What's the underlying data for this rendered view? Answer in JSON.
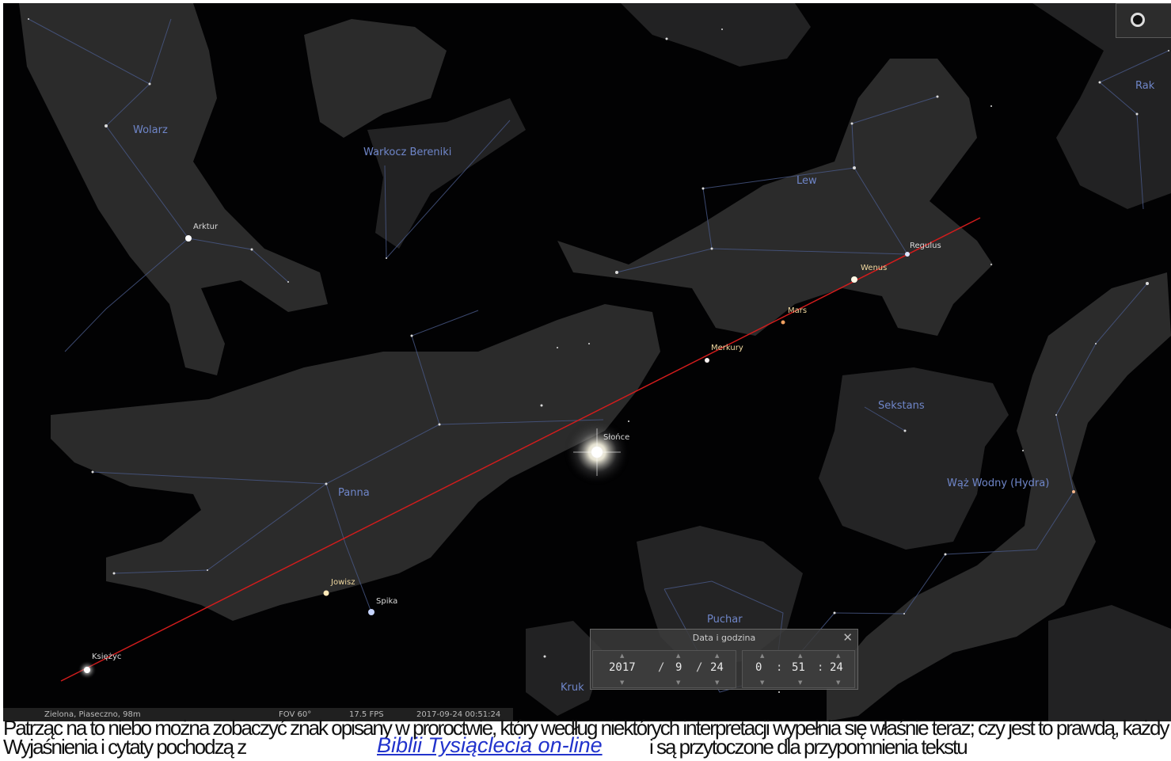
{
  "constellations": {
    "wolarz": "Wolarz",
    "warkocz": "Warkocz Bereniki",
    "lew": "Lew",
    "rak": "Rak",
    "panna": "Panna",
    "sekstans": "Sekstans",
    "waz_wodny": "Wąż Wodny (Hydra)",
    "puchar": "Puchar",
    "kruk": "Kruk"
  },
  "objects": {
    "arktur": "Arktur",
    "regulus": "Regulus",
    "wenus": "Wenus",
    "mars": "Mars",
    "merkury": "Merkury",
    "slonce": "Słońce",
    "jowisz": "Jowisz",
    "spika": "Spika",
    "ksiezyc": "Księżyc"
  },
  "datetime_panel": {
    "title": "Data i godzina",
    "close": "✕",
    "year": "2017",
    "month": "9",
    "day": "24",
    "hour": "0",
    "minute": "51",
    "second": "24",
    "date_sep": "/",
    "time_sep": ":"
  },
  "status_bar": {
    "location": "Zielona, Piaseczno, 98m",
    "fov": "FOV 60°",
    "fps": "17.5 FPS",
    "datetime": "2017-09-24 00:51:24"
  },
  "overlay": {
    "line1": "Patrząc na to niebo można zobaczyć znak opisany w proroctwie, który według niektórych interpretacji wypełnia się właśnie teraz; czy jest to prawdą, każdy ocenić musi sam",
    "line2": "Wyjaśnienia i cytaty pochodzą z",
    "link": "Biblii Tysiąclecia on-line",
    "line2_end": "i są przytoczone dla przypomnienia tekstu"
  }
}
